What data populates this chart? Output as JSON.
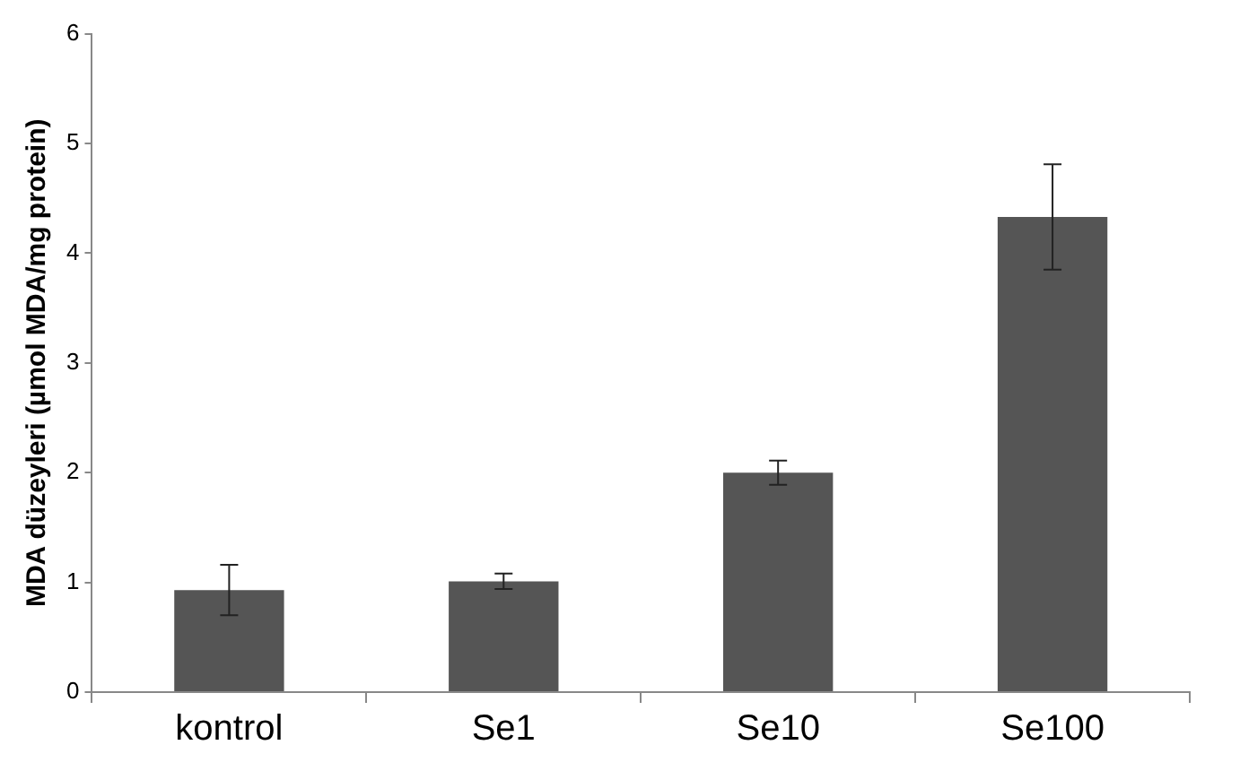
{
  "chart_data": {
    "type": "bar",
    "ylabel": "MDA düzeyleri (µmol MDA/mg protein)",
    "categories": [
      "kontrol",
      "Se1",
      "Se10",
      "Se100"
    ],
    "values": [
      0.93,
      1.01,
      2.0,
      4.33
    ],
    "errors": [
      0.23,
      0.07,
      0.11,
      0.48
    ],
    "color": "#555555",
    "ylim": [
      0,
      6
    ],
    "yticks": [
      0,
      1,
      2,
      3,
      4,
      5,
      6
    ],
    "grid": false
  }
}
